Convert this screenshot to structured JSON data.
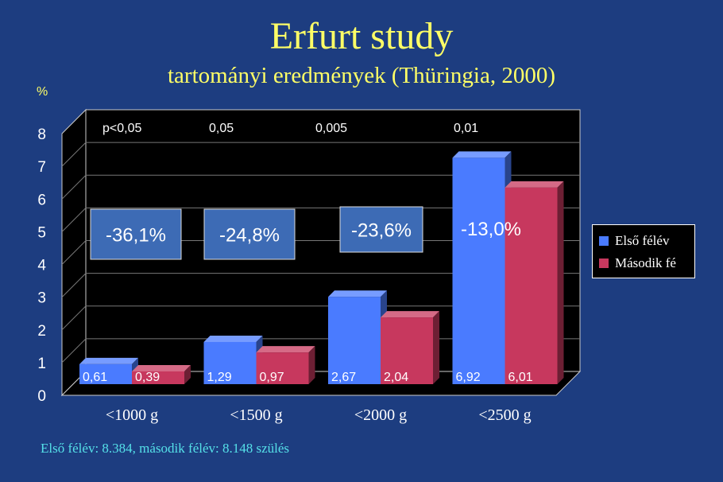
{
  "chart_data": {
    "type": "bar",
    "title": "Erfurt study",
    "subtitle": "tartományi eredmények (Thüringia, 2000)",
    "ylabel": "%",
    "ylim": [
      0,
      8
    ],
    "yticks": [
      "0",
      "1",
      "2",
      "3",
      "4",
      "5",
      "6",
      "7",
      "8"
    ],
    "grid": true,
    "categories": [
      "<1000 g",
      "<1500 g",
      "<2000 g",
      "<2500 g"
    ],
    "series": [
      {
        "name": "Első félév",
        "color": "#4a7bff",
        "values": [
          0.61,
          1.29,
          2.67,
          6.92
        ],
        "labels": [
          "0,61",
          "1,29",
          "2,67",
          "6,92"
        ]
      },
      {
        "name": "Második fé",
        "color": "#c7385e",
        "values": [
          0.39,
          0.97,
          2.04,
          6.01
        ],
        "labels": [
          "0,39",
          "0,97",
          "2,04",
          "6,01"
        ]
      }
    ],
    "p_values": [
      "p<0,05",
      "0,05",
      "0,005",
      "0,01"
    ],
    "change_labels": [
      "-36,1%",
      "-24,8%",
      "-23,6%",
      "-13,0%"
    ],
    "legend_position": "right",
    "colors": {
      "background": "#1d3d80",
      "plot": "#000000",
      "title": "#ffff66",
      "change_box": "#3d6bb5"
    }
  },
  "footnote": "Első félév: 8.384, második félév: 8.148 szülés"
}
